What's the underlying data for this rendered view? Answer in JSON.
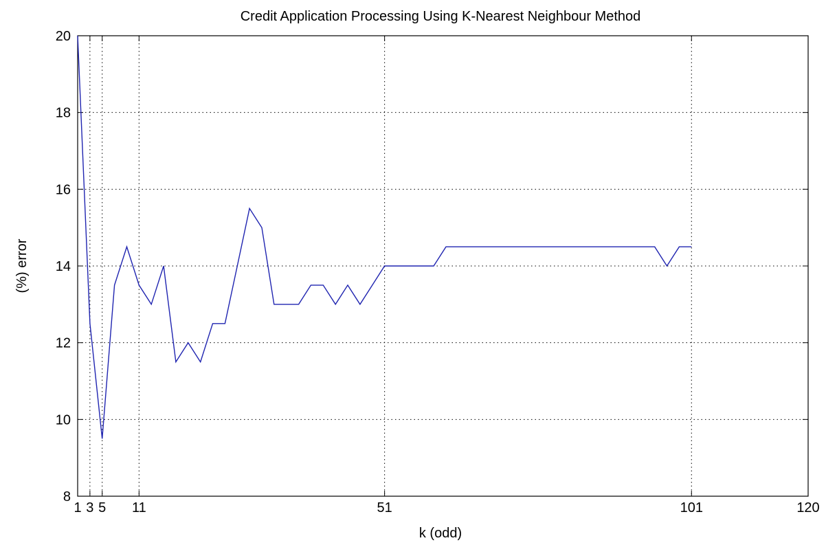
{
  "chart_data": {
    "type": "line",
    "title": "Credit Application Processing Using K-Nearest Neighbour Method",
    "xlabel": "k (odd)",
    "ylabel": "(%) error",
    "xlim": [
      1,
      120
    ],
    "ylim": [
      8,
      20
    ],
    "x_ticks": [
      1,
      3,
      5,
      11,
      51,
      101,
      120
    ],
    "x_tick_labels": [
      "1",
      "3",
      "5",
      "11",
      "51",
      "101",
      "120"
    ],
    "y_ticks": [
      8,
      10,
      12,
      14,
      16,
      18,
      20
    ],
    "y_tick_labels": [
      "8",
      "10",
      "12",
      "14",
      "16",
      "18",
      "20"
    ],
    "grid": true,
    "line_color": "#1f24b0",
    "series": [
      {
        "x": [
          1,
          3,
          5,
          7,
          9,
          11,
          13,
          15,
          17,
          19,
          21,
          23,
          25,
          27,
          29,
          31,
          33,
          35,
          37,
          39,
          41,
          43,
          45,
          47,
          49,
          51,
          53,
          55,
          57,
          59,
          61,
          63,
          65,
          67,
          69,
          71,
          73,
          75,
          77,
          79,
          81,
          83,
          85,
          87,
          89,
          91,
          93,
          95,
          97,
          99,
          101
        ],
        "y": [
          20.0,
          12.5,
          9.5,
          13.5,
          14.5,
          13.5,
          13.0,
          14.0,
          11.5,
          12.0,
          11.5,
          12.5,
          12.5,
          14.0,
          15.5,
          15.0,
          13.0,
          13.0,
          13.0,
          13.5,
          13.5,
          13.0,
          13.5,
          13.0,
          13.5,
          14.0,
          14.0,
          14.0,
          14.0,
          14.0,
          14.5,
          14.5,
          14.5,
          14.5,
          14.5,
          14.5,
          14.5,
          14.5,
          14.5,
          14.5,
          14.5,
          14.5,
          14.5,
          14.5,
          14.5,
          14.5,
          14.5,
          14.5,
          14.0,
          14.5,
          14.5
        ]
      }
    ]
  }
}
